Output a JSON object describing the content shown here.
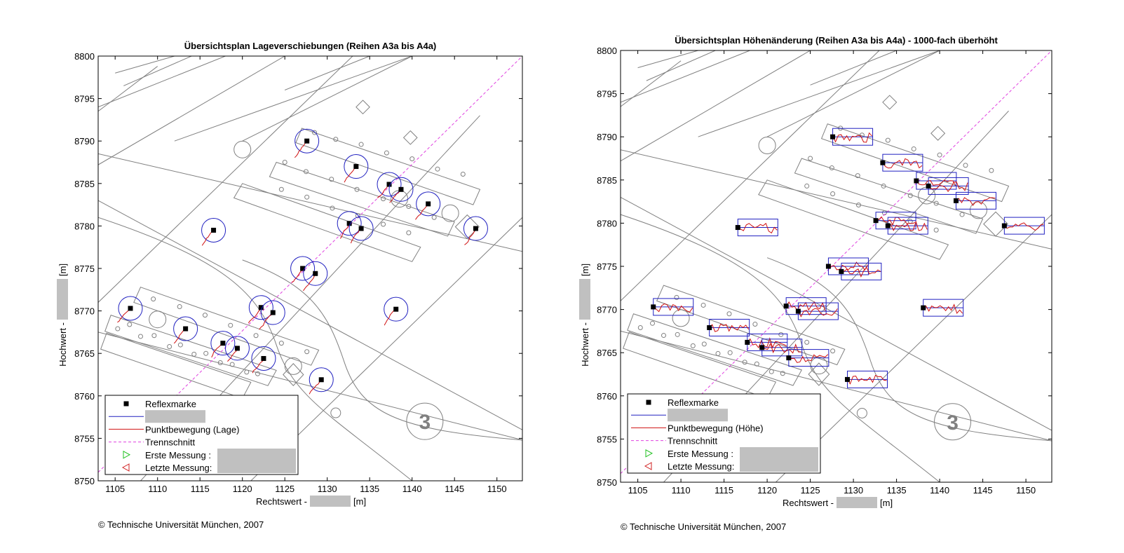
{
  "chart_data": [
    {
      "type": "scatter",
      "title": "Übersichtsplan Lageverschiebungen (Reihen A3a bis A4a)",
      "xlabel_prefix": "Rechtswert -",
      "xlabel_suffix": "[m]",
      "ylabel_prefix": "Hochwert -",
      "ylabel_suffix": "[m]",
      "xlim": [
        1103,
        1153
      ],
      "ylim": [
        8750,
        8800
      ],
      "xticks": [
        1105,
        1110,
        1115,
        1120,
        1125,
        1130,
        1135,
        1140,
        1145,
        1150
      ],
      "yticks": [
        8750,
        8755,
        8760,
        8765,
        8770,
        8775,
        8780,
        8785,
        8790,
        8795,
        8800
      ],
      "grid": false,
      "legend_position": "bottom-left",
      "legend": [
        "Reflexmarke",
        "",
        "Punktbewegung (Lage)",
        "Trennschnitt",
        "Erste Messung :",
        "Letzte Messung:"
      ],
      "annotation": "3",
      "points": [
        [
          1106.8,
          8770.3
        ],
        [
          1113.3,
          8767.9
        ],
        [
          1116.6,
          8779.5
        ],
        [
          1117.7,
          8766.2
        ],
        [
          1119.4,
          8765.6
        ],
        [
          1122.2,
          8770.4
        ],
        [
          1122.5,
          8764.4
        ],
        [
          1123.6,
          8769.8
        ],
        [
          1127.1,
          8775.0
        ],
        [
          1127.6,
          8790.0
        ],
        [
          1128.6,
          8774.4
        ],
        [
          1129.3,
          8761.9
        ],
        [
          1132.6,
          8780.3
        ],
        [
          1133.4,
          8787.0
        ],
        [
          1134.0,
          8779.7
        ],
        [
          1137.3,
          8784.9
        ],
        [
          1138.1,
          8770.2
        ],
        [
          1138.7,
          8784.3
        ],
        [
          1141.9,
          8782.6
        ],
        [
          1147.5,
          8779.7
        ]
      ]
    },
    {
      "type": "scatter",
      "title": "Übersichtsplan Höhenänderung (Reihen A3a bis A4a) - 1000-fach überhöht",
      "xlabel_prefix": "Rechtswert -",
      "xlabel_suffix": "[m]",
      "ylabel_prefix": "Hochwert -",
      "ylabel_suffix": "[m]",
      "xlim": [
        1103,
        1153
      ],
      "ylim": [
        8750,
        8800
      ],
      "xticks": [
        1105,
        1110,
        1115,
        1120,
        1125,
        1130,
        1135,
        1140,
        1145,
        1150
      ],
      "yticks": [
        8750,
        8755,
        8760,
        8765,
        8770,
        8775,
        8780,
        8785,
        8790,
        8795,
        8800
      ],
      "grid": false,
      "legend_position": "bottom-left",
      "legend": [
        "Reflexmarke",
        "",
        "Punktbewegung (Höhe)",
        "Trennschnitt",
        "Erste Messung :",
        "Letzte Messung:"
      ],
      "annotation": "3",
      "points": [
        [
          1106.8,
          8770.3
        ],
        [
          1113.3,
          8767.9
        ],
        [
          1116.6,
          8779.5
        ],
        [
          1117.7,
          8766.2
        ],
        [
          1119.4,
          8765.6
        ],
        [
          1122.2,
          8770.4
        ],
        [
          1122.5,
          8764.4
        ],
        [
          1123.6,
          8769.8
        ],
        [
          1127.1,
          8775.0
        ],
        [
          1127.6,
          8790.0
        ],
        [
          1128.6,
          8774.4
        ],
        [
          1129.3,
          8761.9
        ],
        [
          1132.6,
          8780.3
        ],
        [
          1133.4,
          8787.0
        ],
        [
          1134.0,
          8779.7
        ],
        [
          1137.3,
          8784.9
        ],
        [
          1138.1,
          8770.2
        ],
        [
          1138.7,
          8784.3
        ],
        [
          1141.9,
          8782.6
        ],
        [
          1147.5,
          8779.7
        ]
      ]
    }
  ],
  "copyright": "© Technische Universität München, 2007",
  "colors": {
    "marker": "#000000",
    "circle": "#2020c0",
    "movement": "#d01010",
    "trennschnitt": "#e040e0",
    "first": "#20c020",
    "last": "#d02020",
    "map": "#808080",
    "redacted": "#c0c0c0"
  }
}
